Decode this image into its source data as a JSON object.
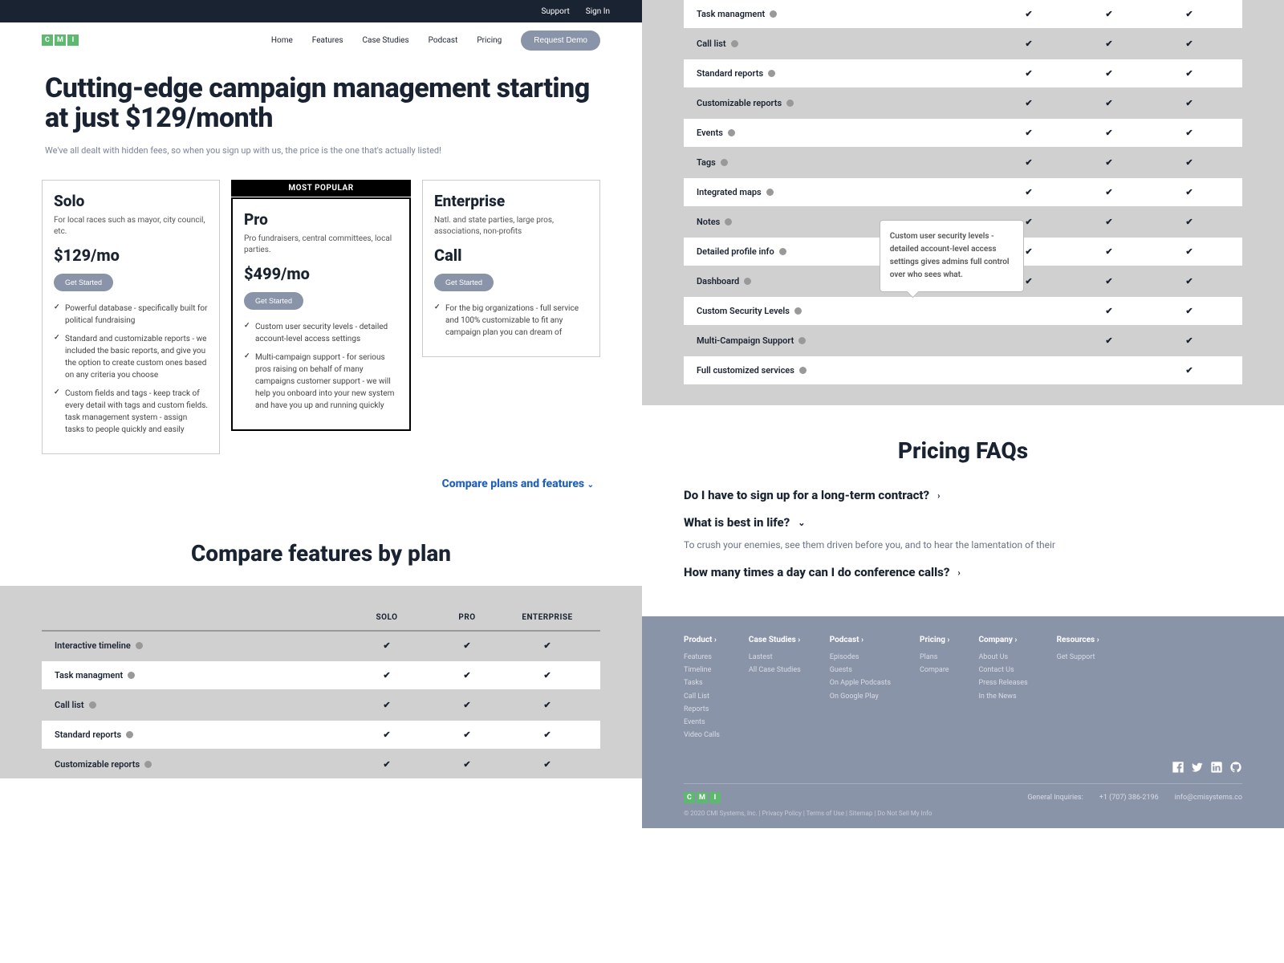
{
  "topbar": {
    "support": "Support",
    "signin": "Sign In"
  },
  "logo": [
    "C",
    "M",
    "I"
  ],
  "nav": [
    "Home",
    "Features",
    "Case Studies",
    "Podcast",
    "Pricing"
  ],
  "demo_btn": "Request Demo",
  "hero": {
    "title": "Cutting-edge campaign management starting at just $129/month",
    "sub": "We've all dealt with hidden fees, so when you sign up with us, the price is the one that's actually listed!"
  },
  "popular_label": "MOST POPULAR",
  "get_started": "Get Started",
  "plans": [
    {
      "name": "Solo",
      "desc": "For local races such as mayor, city council, etc.",
      "price": "$129/mo",
      "features": [
        "Powerful database - specifically built for political fundraising",
        "Standard and customizable reports - we included the basic reports, and give you the option to create custom ones based on any criteria you choose",
        "Custom fields and tags - keep track of every detail with tags and custom fields. task management system - assign tasks to people quickly and easily"
      ]
    },
    {
      "name": "Pro",
      "desc": "Pro fundraisers, central committees, local parties.",
      "price": "$499/mo",
      "popular": true,
      "features": [
        "Custom user security levels - detailed account-level access settings",
        "Multi-campaign support - for serious pros raising on behalf of many campaigns customer support - we will help you onboard into your new system and have you up and running quickly"
      ]
    },
    {
      "name": "Enterprise",
      "desc": "Natl. and state parties, large pros, associations, non-profits",
      "price": "Call",
      "features": [
        "For the big organizations - full service and 100% customizable to fit any campaign plan you can dream of"
      ]
    }
  ],
  "compare_link": "Compare plans and features",
  "compare_header": "Compare features by plan",
  "cmp_cols": [
    "SOLO",
    "PRO",
    "ENTERPRISE"
  ],
  "cmp_rows_left": [
    {
      "name": "Interactive timeline",
      "c": [
        true,
        true,
        true
      ]
    },
    {
      "name": "Task managment",
      "c": [
        true,
        true,
        true
      ]
    },
    {
      "name": "Call list",
      "c": [
        true,
        true,
        true
      ]
    },
    {
      "name": "Standard reports",
      "c": [
        true,
        true,
        true
      ]
    },
    {
      "name": "Customizable reports",
      "c": [
        true,
        true,
        true
      ]
    }
  ],
  "cmp_rows_right": [
    {
      "name": "Task managment",
      "c": [
        true,
        true,
        true
      ]
    },
    {
      "name": "Call list",
      "c": [
        true,
        true,
        true
      ]
    },
    {
      "name": "Standard reports",
      "c": [
        true,
        true,
        true
      ]
    },
    {
      "name": "Customizable reports",
      "c": [
        true,
        true,
        true
      ]
    },
    {
      "name": "Events",
      "c": [
        true,
        true,
        true
      ]
    },
    {
      "name": "Tags",
      "c": [
        true,
        true,
        true
      ]
    },
    {
      "name": "Integrated maps",
      "c": [
        true,
        true,
        true
      ]
    },
    {
      "name": "Notes",
      "c": [
        true,
        true,
        true
      ]
    },
    {
      "name": "Detailed profile info",
      "c": [
        true,
        true,
        true
      ],
      "tooltip": true
    },
    {
      "name": "Dashboard",
      "c": [
        true,
        true,
        true
      ]
    },
    {
      "name": "Custom Security Levels",
      "c": [
        false,
        true,
        true
      ]
    },
    {
      "name": "Multi-Campaign Support",
      "c": [
        false,
        true,
        true
      ]
    },
    {
      "name": "Full customized services",
      "c": [
        false,
        false,
        true
      ]
    }
  ],
  "tooltip_text": "Custom user security levels - detailed account-level access settings gives admins full control over who sees what.",
  "faq_title": "Pricing FAQs",
  "faqs": [
    {
      "q": "Do I have to sign up for a long-term contract?",
      "open": false
    },
    {
      "q": "What is best in life?",
      "open": true,
      "a": "To crush your enemies, see them driven before you, and to hear the lamentation of their"
    },
    {
      "q": "How many times a day can I do conference calls?",
      "open": false
    }
  ],
  "footer": {
    "cols": [
      {
        "title": "Product",
        "links": [
          "Features",
          "Timeline",
          "Tasks",
          "Call List",
          "Reports",
          "Events",
          "Video Calls"
        ]
      },
      {
        "title": "Case Studies",
        "links": [
          "Lastest",
          "All Case Studies"
        ]
      },
      {
        "title": "Podcast",
        "links": [
          "Episodes",
          "Guests",
          "On Apple Podcasts",
          "On Google Play"
        ]
      },
      {
        "title": "Pricing",
        "links": [
          "Plans",
          "Compare"
        ]
      },
      {
        "title": "Company",
        "links": [
          "About Us",
          "Contact Us",
          "Press Releases",
          "In the News"
        ]
      },
      {
        "title": "Resources",
        "links": [
          "Get Support"
        ]
      }
    ],
    "general": "General Inquiries:",
    "phone": "+1 (707) 386-2196",
    "email": "info@cmisystems.co",
    "copyright": "© 2020 CMI Systems, Inc.  |  Privacy Policy  |  Terms of Use  |  Sitemap  |  Do Not Sell My Info"
  }
}
